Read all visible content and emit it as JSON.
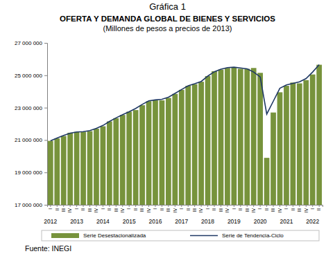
{
  "chart_data": {
    "type": "bar",
    "label": "Gráfica 1",
    "title": "OFERTA Y DEMANDA GLOBAL DE BIENES Y SERVICIOS",
    "subtitle": "(Millones de pesos a precios de 2013)",
    "source": "Fuente: INEGI",
    "categories": [
      "I",
      "II",
      "III",
      "IV",
      "I",
      "II",
      "III",
      "IV",
      "I",
      "II",
      "III",
      "IV",
      "I",
      "II",
      "III",
      "IV",
      "I",
      "II",
      "III",
      "IV",
      "I",
      "II",
      "III",
      "IV",
      "I",
      "II",
      "III",
      "IV",
      "I",
      "II",
      "III",
      "IV",
      "I",
      "II",
      "III",
      "IV",
      "I",
      "II",
      "III",
      "IV",
      "I",
      "II"
    ],
    "years": [
      "2012",
      "2013",
      "2014",
      "2015",
      "2016",
      "2017",
      "2018",
      "2019",
      "2020",
      "2021",
      "2022"
    ],
    "series": [
      {
        "name": "Serie Desestacionalizada",
        "type": "bar",
        "color": "#77933c",
        "values": [
          20950000,
          21100000,
          21250000,
          21450000,
          21500000,
          21500000,
          21550000,
          21700000,
          21850000,
          22150000,
          22350000,
          22550000,
          22750000,
          22850000,
          23150000,
          23400000,
          23450000,
          23450000,
          23600000,
          23850000,
          24100000,
          24350000,
          24450000,
          24600000,
          24950000,
          25250000,
          25350000,
          25450000,
          25500000,
          25400000,
          25400000,
          25450000,
          25150000,
          19900000,
          22700000,
          23950000,
          24350000,
          24550000,
          24500000,
          24700000,
          25050000,
          25650000
        ]
      },
      {
        "name": "Serie de Tendencia-Ciclo",
        "type": "line",
        "color": "#1f3864",
        "values": [
          20950000,
          21120000,
          21280000,
          21420000,
          21500000,
          21520000,
          21580000,
          21720000,
          21900000,
          22150000,
          22370000,
          22570000,
          22750000,
          22950000,
          23200000,
          23420000,
          23480000,
          23520000,
          23650000,
          23880000,
          24120000,
          24350000,
          24480000,
          24620000,
          24950000,
          25220000,
          25380000,
          25470000,
          25500000,
          25450000,
          25400000,
          25200000,
          24900000,
          22600000,
          23400000,
          24200000,
          24400000,
          24500000,
          24600000,
          24800000,
          25200000,
          25650000
        ]
      }
    ],
    "ylim": [
      17000000,
      27000000
    ],
    "yticks": [
      {
        "value": 17000000,
        "label": "17 000 000"
      },
      {
        "value": 19000000,
        "label": "19 000 000"
      },
      {
        "value": 21000000,
        "label": "21 000 000"
      },
      {
        "value": 23000000,
        "label": "23 000 000"
      },
      {
        "value": 25000000,
        "label": "25 000 000"
      },
      {
        "value": 27000000,
        "label": "27 000 000"
      }
    ],
    "grid": false,
    "legend": "bottom"
  }
}
